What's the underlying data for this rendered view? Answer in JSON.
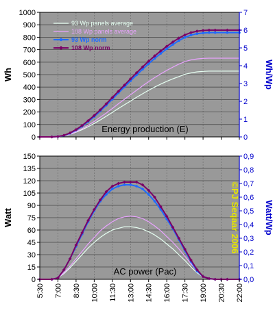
{
  "chart_data": [
    {
      "type": "line",
      "title": "Energy production (E)",
      "ylabel": "Wh",
      "y2label": "Wh/Wp",
      "ylim": [
        0,
        1000
      ],
      "y2lim": [
        0,
        7
      ],
      "yticks": [
        "0",
        "100",
        "200",
        "300",
        "400",
        "500",
        "600",
        "700",
        "800",
        "900",
        "1000"
      ],
      "y2ticks": [
        "0",
        "1",
        "2",
        "3",
        "4",
        "5",
        "6",
        "7"
      ],
      "grid": true,
      "legend": "top-left",
      "series": [
        {
          "name": "93 Wp panels average",
          "color": "#e6fff2",
          "axis": "left",
          "marker": "none",
          "x": [
            "5:30",
            "6:30",
            "7:00",
            "7:30",
            "8:00",
            "8:30",
            "9:00",
            "9:30",
            "10:00",
            "10:30",
            "11:00",
            "11:30",
            "12:00",
            "12:30",
            "13:00",
            "13:30",
            "14:00",
            "14:30",
            "15:00",
            "15:30",
            "16:00",
            "16:30",
            "17:00",
            "17:30",
            "18:00",
            "18:30",
            "19:00",
            "19:30",
            "20:00",
            "21:00",
            "22:00"
          ],
          "y": [
            0,
            0,
            2,
            8,
            20,
            38,
            58,
            82,
            108,
            136,
            166,
            196,
            228,
            258,
            288,
            318,
            346,
            374,
            400,
            424,
            446,
            466,
            484,
            502,
            514,
            522,
            526,
            528,
            528,
            528,
            528
          ]
        },
        {
          "name": "108 Wp panels average",
          "color": "#e9a3ff",
          "axis": "left",
          "marker": "none",
          "x": [
            "5:30",
            "6:30",
            "7:00",
            "7:30",
            "8:00",
            "8:30",
            "9:00",
            "9:30",
            "10:00",
            "10:30",
            "11:00",
            "11:30",
            "12:00",
            "12:30",
            "13:00",
            "13:30",
            "14:00",
            "14:30",
            "15:00",
            "15:30",
            "16:00",
            "16:30",
            "17:00",
            "17:30",
            "18:00",
            "18:30",
            "19:00",
            "19:30",
            "20:00",
            "21:00",
            "22:00"
          ],
          "y": [
            0,
            0,
            2,
            8,
            22,
            42,
            66,
            94,
            124,
            158,
            192,
            228,
            266,
            302,
            338,
            374,
            410,
            444,
            476,
            506,
            534,
            560,
            584,
            604,
            618,
            626,
            630,
            632,
            632,
            632,
            632
          ]
        },
        {
          "name": "93 Wp norm",
          "color": "#1f6bff",
          "axis": "right",
          "marker": "dot",
          "x": [
            "5:30",
            "6:30",
            "7:00",
            "7:30",
            "8:00",
            "8:30",
            "9:00",
            "9:30",
            "10:00",
            "10:30",
            "11:00",
            "11:30",
            "12:00",
            "12:30",
            "13:00",
            "13:30",
            "14:00",
            "14:30",
            "15:00",
            "15:30",
            "16:00",
            "16:30",
            "17:00",
            "17:30",
            "18:00",
            "18:30",
            "19:00",
            "19:30",
            "20:00",
            "21:00",
            "22:00"
          ],
          "y": [
            0,
            0,
            0.02,
            0.08,
            0.2,
            0.38,
            0.6,
            0.86,
            1.14,
            1.45,
            1.78,
            2.12,
            2.47,
            2.81,
            3.15,
            3.48,
            3.8,
            4.11,
            4.41,
            4.69,
            4.95,
            5.19,
            5.41,
            5.59,
            5.72,
            5.8,
            5.84,
            5.86,
            5.86,
            5.86,
            5.86
          ]
        },
        {
          "name": "108 Wp norm",
          "color": "#7a0066",
          "axis": "right",
          "marker": "diamond",
          "x": [
            "5:30",
            "6:30",
            "7:00",
            "7:30",
            "8:00",
            "8:30",
            "9:00",
            "9:30",
            "10:00",
            "10:30",
            "11:00",
            "11:30",
            "12:00",
            "12:30",
            "13:00",
            "13:30",
            "14:00",
            "14:30",
            "15:00",
            "15:30",
            "16:00",
            "16:30",
            "17:00",
            "17:30",
            "18:00",
            "18:30",
            "19:00",
            "19:30",
            "20:00",
            "21:00",
            "22:00"
          ],
          "y": [
            0,
            0,
            0.02,
            0.09,
            0.22,
            0.41,
            0.64,
            0.91,
            1.2,
            1.52,
            1.86,
            2.21,
            2.56,
            2.91,
            3.26,
            3.6,
            3.93,
            4.25,
            4.55,
            4.83,
            5.09,
            5.33,
            5.55,
            5.73,
            5.86,
            5.94,
            5.98,
            6.0,
            6.0,
            6.0,
            6.0
          ]
        }
      ]
    },
    {
      "type": "line",
      "title": "AC power (Pac)",
      "ylabel": "Watt",
      "y2label": "Watt/Wp",
      "xlabel": "",
      "ylim": [
        0,
        150
      ],
      "y2lim": [
        0,
        0.9
      ],
      "yticks": [
        "0",
        "15",
        "30",
        "45",
        "60",
        "75",
        "90",
        "105",
        "120",
        "135",
        "150"
      ],
      "y2ticks": [
        "0,0",
        "0,1",
        "0,2",
        "0,3",
        "0,4",
        "0,5",
        "0,6",
        "0,7",
        "0,8",
        "0,9"
      ],
      "xticks": [
        "5:30",
        "7:00",
        "8:30",
        "10:00",
        "11:30",
        "13:00",
        "14:30",
        "16:00",
        "17:30",
        "19:00",
        "20:30",
        "22:00"
      ],
      "xlim": [
        "5:30",
        "22:00"
      ],
      "grid": true,
      "annotation": "©PJ Seqaar 2006",
      "annotation_color": "#e6e600",
      "series": [
        {
          "color": "#e6fff2",
          "axis": "left",
          "marker": "none",
          "x": [
            "5:30",
            "6:30",
            "7:00",
            "7:30",
            "8:00",
            "8:30",
            "9:00",
            "9:30",
            "10:00",
            "10:30",
            "11:00",
            "11:30",
            "12:00",
            "12:30",
            "13:00",
            "13:30",
            "14:00",
            "14:30",
            "15:00",
            "15:30",
            "16:00",
            "16:30",
            "17:00",
            "17:30",
            "18:00",
            "18:30",
            "19:00",
            "19:30",
            "20:00",
            "20:30",
            "21:00",
            "22:00"
          ],
          "y": [
            0,
            0,
            2,
            7,
            14,
            22,
            30,
            38,
            45,
            51,
            56,
            60,
            62,
            64,
            64,
            63,
            61,
            58,
            54,
            49,
            43,
            37,
            30,
            23,
            15,
            8,
            3,
            1,
            0,
            0,
            0,
            0
          ]
        },
        {
          "color": "#e9a3ff",
          "axis": "left",
          "marker": "none",
          "x": [
            "5:30",
            "6:30",
            "7:00",
            "7:30",
            "8:00",
            "8:30",
            "9:00",
            "9:30",
            "10:00",
            "10:30",
            "11:00",
            "11:30",
            "12:00",
            "12:30",
            "13:00",
            "13:30",
            "14:00",
            "14:30",
            "15:00",
            "15:30",
            "16:00",
            "16:30",
            "17:00",
            "17:30",
            "18:00",
            "18:30",
            "19:00",
            "19:30",
            "20:00",
            "20:30",
            "21:00",
            "22:00"
          ],
          "y": [
            0,
            0,
            2,
            8,
            16,
            25,
            34,
            43,
            51,
            59,
            65,
            70,
            74,
            76,
            77,
            76,
            74,
            70,
            65,
            59,
            52,
            45,
            37,
            28,
            19,
            10,
            4,
            1,
            0,
            0,
            0,
            0
          ]
        },
        {
          "color": "#1f6bff",
          "axis": "right",
          "marker": "dot",
          "x": [
            "5:30",
            "6:30",
            "7:00",
            "7:30",
            "8:00",
            "8:30",
            "9:00",
            "9:30",
            "10:00",
            "10:30",
            "11:00",
            "11:30",
            "12:00",
            "12:30",
            "13:00",
            "13:30",
            "14:00",
            "14:30",
            "15:00",
            "15:30",
            "16:00",
            "16:30",
            "17:00",
            "17:30",
            "18:00",
            "18:30",
            "19:00",
            "19:30",
            "20:00",
            "20:30",
            "21:00",
            "22:00"
          ],
          "y": [
            0,
            0,
            0.01,
            0.07,
            0.15,
            0.24,
            0.33,
            0.42,
            0.5,
            0.57,
            0.62,
            0.66,
            0.68,
            0.69,
            0.69,
            0.68,
            0.66,
            0.62,
            0.57,
            0.51,
            0.44,
            0.37,
            0.29,
            0.21,
            0.13,
            0.06,
            0.02,
            0.005,
            0,
            0,
            0,
            0
          ]
        },
        {
          "color": "#7a0066",
          "axis": "right",
          "marker": "diamond",
          "x": [
            "5:30",
            "6:30",
            "7:00",
            "7:30",
            "8:00",
            "8:30",
            "9:00",
            "9:30",
            "10:00",
            "10:30",
            "11:00",
            "11:30",
            "12:00",
            "12:30",
            "13:00",
            "13:30",
            "14:00",
            "14:30",
            "15:00",
            "15:30",
            "16:00",
            "16:30",
            "17:00",
            "17:30",
            "18:00",
            "18:30",
            "19:00",
            "19:30",
            "20:00",
            "20:30",
            "21:00",
            "22:00"
          ],
          "y": [
            0,
            0,
            0.01,
            0.07,
            0.15,
            0.25,
            0.34,
            0.43,
            0.51,
            0.58,
            0.64,
            0.68,
            0.7,
            0.71,
            0.71,
            0.71,
            0.69,
            0.65,
            0.6,
            0.53,
            0.46,
            0.38,
            0.3,
            0.22,
            0.14,
            0.07,
            0.02,
            0.005,
            0,
            0,
            0,
            0
          ]
        }
      ]
    }
  ],
  "colors": {
    "plot_bg": "#999999",
    "left_axis_text": "#000000",
    "right_axis_text": "#0000cc"
  }
}
